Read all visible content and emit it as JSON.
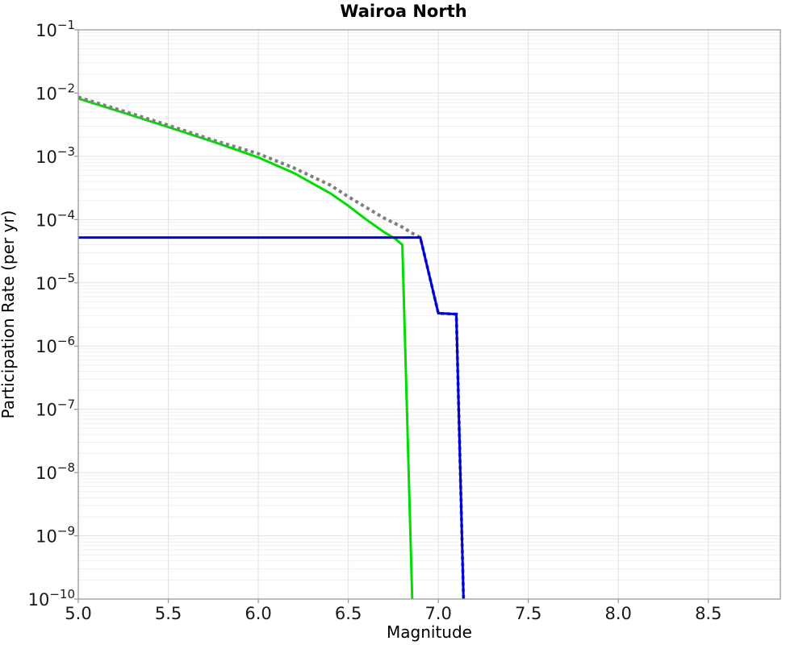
{
  "title": "Wairoa North",
  "axes": {
    "xlabel": "Magnitude",
    "ylabel": "Participation Rate (per yr)",
    "x_tick_values": [
      5.0,
      5.5,
      6.0,
      6.5,
      7.0,
      7.5,
      8.0,
      8.5
    ],
    "x_tick_labels": [
      "5.0",
      "5.5",
      "6.0",
      "6.5",
      "7.0",
      "7.5",
      "8.0",
      "8.5"
    ],
    "y_tick_base": "10",
    "y_tick_exponents": [
      -1,
      -2,
      -3,
      -4,
      -5,
      -6,
      -7,
      -8,
      -9,
      -10
    ],
    "grid": true
  },
  "colors": {
    "green_line": "#00dd00",
    "blue_line": "#0000dd",
    "gray_dotted": "#7f7f7f",
    "grid_major": "#e2e2e2",
    "grid_minor": "#efefef",
    "spine": "#9a9a9a",
    "background": "#ffffff"
  },
  "chart_data": {
    "type": "line",
    "title": "Wairoa North",
    "xlabel": "Magnitude",
    "ylabel": "Participation Rate (per yr)",
    "xscale": "linear",
    "yscale": "log",
    "xlim": [
      5.0,
      8.9
    ],
    "ylim": [
      1e-10,
      0.1
    ],
    "grid": true,
    "legend": "none",
    "series": [
      {
        "name": "green-solid-curve",
        "color": "#00dd00",
        "style": "solid",
        "width": 3,
        "points": [
          [
            5.0,
            0.0082
          ],
          [
            5.25,
            0.0049
          ],
          [
            5.5,
            0.0029
          ],
          [
            5.75,
            0.0017
          ],
          [
            6.0,
            0.00096
          ],
          [
            6.2,
            0.00054
          ],
          [
            6.4,
            0.00026
          ],
          [
            6.5,
            0.000165
          ],
          [
            6.6,
            0.0001
          ],
          [
            6.7,
            6.3e-05
          ],
          [
            6.76,
            5e-05
          ],
          [
            6.8,
            4e-05
          ],
          [
            6.855,
            1e-10
          ]
        ]
      },
      {
        "name": "gray-dotted-curve",
        "color": "#7f7f7f",
        "style": "dotted",
        "width": 4,
        "points": [
          [
            5.0,
            0.0086
          ],
          [
            5.25,
            0.0052
          ],
          [
            5.5,
            0.0031
          ],
          [
            5.75,
            0.0018
          ],
          [
            6.0,
            0.0011
          ],
          [
            6.2,
            0.00065
          ],
          [
            6.4,
            0.00035
          ],
          [
            6.5,
            0.00023
          ],
          [
            6.6,
            0.000155
          ],
          [
            6.7,
            0.000105
          ],
          [
            6.8,
            7.6e-05
          ],
          [
            6.85,
            6.2e-05
          ],
          [
            6.9,
            5.2e-05
          ],
          [
            7.0,
            3.3e-06
          ],
          [
            7.1,
            3.2e-06
          ],
          [
            7.14,
            1e-10
          ]
        ]
      },
      {
        "name": "blue-solid-curve",
        "color": "#0000dd",
        "style": "solid",
        "width": 3,
        "points": [
          [
            5.0,
            5.2e-05
          ],
          [
            6.9,
            5.2e-05
          ],
          [
            7.0,
            3.3e-06
          ],
          [
            7.1,
            3.2e-06
          ],
          [
            7.14,
            1e-10
          ]
        ]
      }
    ]
  }
}
